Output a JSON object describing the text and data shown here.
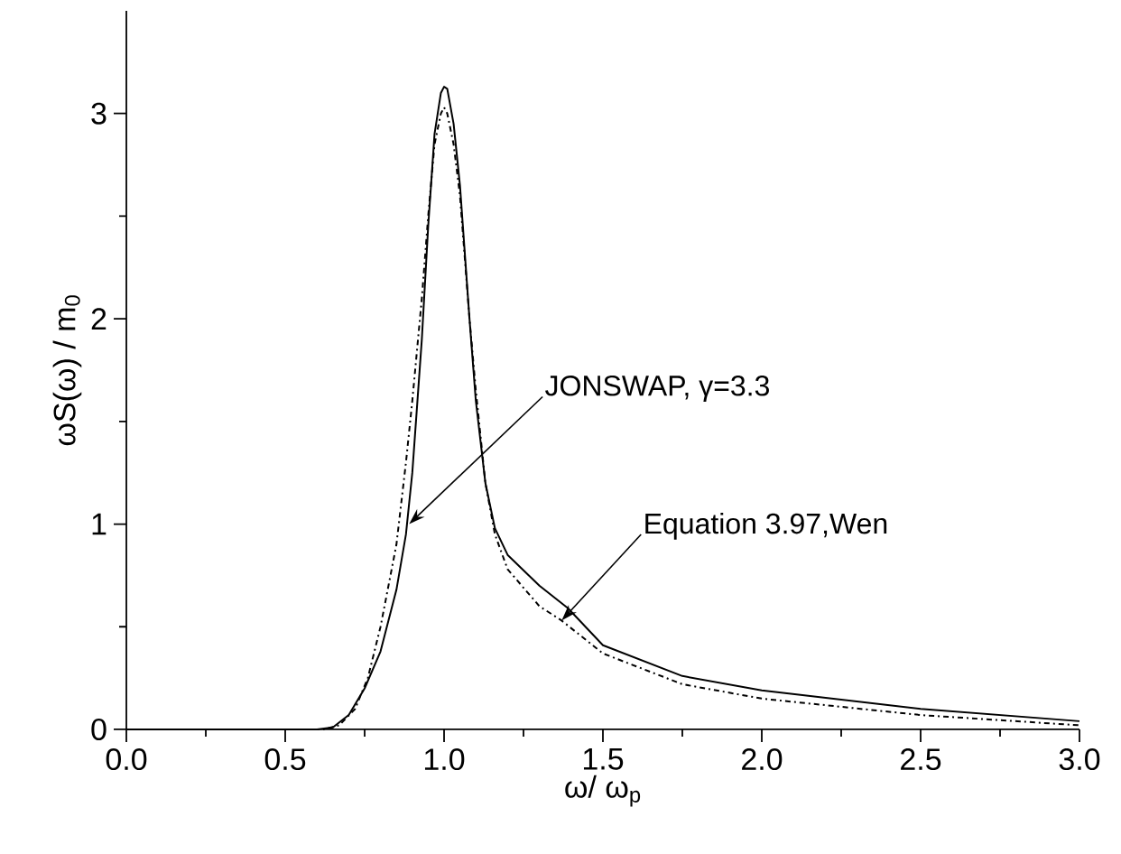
{
  "chart_data": {
    "type": "line",
    "xlabel": "ω/ ω$_{p}$",
    "ylabel": "ωS(ω) / m$_{0}$",
    "xlim": [
      0,
      3.0
    ],
    "ylim": [
      0,
      3.5
    ],
    "xticks": [
      {
        "value": 0,
        "label": "0.0"
      },
      {
        "value": 0.5,
        "label": "0.5"
      },
      {
        "value": 1,
        "label": "1.0"
      },
      {
        "value": 1.5,
        "label": "1.5"
      },
      {
        "value": 2,
        "label": "2.0"
      },
      {
        "value": 2.5,
        "label": "2.5"
      },
      {
        "value": 3,
        "label": "3.0"
      }
    ],
    "yticks": [
      0,
      1,
      2,
      3
    ],
    "grid": false,
    "legend": false,
    "marker": "none",
    "series": [
      {
        "color": "#000000",
        "line_style": "solid",
        "x": [
          0,
          0.6,
          0.65,
          0.7,
          0.75,
          0.8,
          0.85,
          0.88,
          0.9,
          0.93,
          0.95,
          0.97,
          0.99,
          1.0,
          1.01,
          1.03,
          1.05,
          1.08,
          1.1,
          1.13,
          1.16,
          1.2,
          1.3,
          1.39,
          1.5,
          1.75,
          2.0,
          2.5,
          3.0
        ],
        "values": [
          0,
          0,
          0.01,
          0.07,
          0.2,
          0.38,
          0.68,
          0.95,
          1.25,
          1.9,
          2.45,
          2.9,
          3.1,
          3.13,
          3.12,
          2.95,
          2.65,
          2.0,
          1.6,
          1.2,
          0.98,
          0.85,
          0.7,
          0.59,
          0.41,
          0.26,
          0.19,
          0.1,
          0.04
        ]
      },
      {
        "color": "#000000",
        "line_style": "dashdot",
        "x": [
          0,
          0.62,
          0.67,
          0.72,
          0.76,
          0.8,
          0.85,
          0.88,
          0.9,
          0.93,
          0.95,
          0.97,
          0.99,
          1.0,
          1.01,
          1.03,
          1.05,
          1.08,
          1.1,
          1.13,
          1.16,
          1.2,
          1.3,
          1.37,
          1.5,
          1.75,
          2.0,
          2.5,
          3.0
        ],
        "values": [
          0,
          0,
          0.02,
          0.1,
          0.25,
          0.5,
          0.9,
          1.3,
          1.6,
          2.1,
          2.5,
          2.85,
          3.0,
          3.03,
          3.0,
          2.85,
          2.6,
          2.0,
          1.65,
          1.2,
          0.95,
          0.78,
          0.6,
          0.53,
          0.37,
          0.22,
          0.15,
          0.07,
          0.02
        ]
      }
    ],
    "annotations": [
      {
        "text": "JONSWAP, γ=3.3",
        "x": 0.89,
        "y": 1.0
      },
      {
        "text": "Equation 3.97,Wen",
        "x": 1.37,
        "y": 0.53
      }
    ]
  }
}
